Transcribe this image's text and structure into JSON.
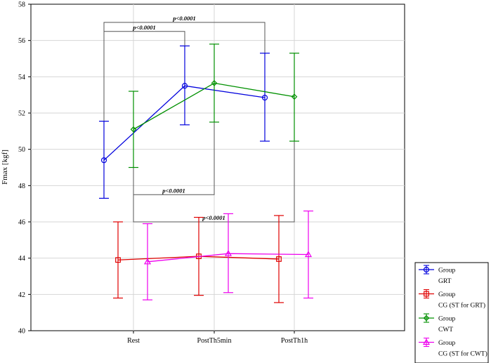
{
  "chart_data": {
    "type": "line",
    "categories": [
      "Rest",
      "PostTh5min",
      "PostTh1h"
    ],
    "ylabel": "Fmax [kgf]",
    "xlabel": "",
    "ylim": [
      40,
      58
    ],
    "yticks": [
      40,
      42,
      44,
      46,
      48,
      50,
      52,
      54,
      56,
      58
    ],
    "grid": true,
    "legend_placement": "right",
    "series": [
      {
        "name": "GRT",
        "legend_header": "Group",
        "color": "#0000dd",
        "marker": "circle",
        "values": [
          49.4,
          53.5,
          52.85
        ],
        "lower": [
          47.3,
          51.35,
          50.45
        ],
        "upper": [
          51.55,
          55.7,
          55.3
        ]
      },
      {
        "name": "CG (ST for GRT)",
        "legend_header": "Group",
        "color": "#e00000",
        "marker": "square",
        "values": [
          43.9,
          44.1,
          43.95
        ],
        "lower": [
          41.8,
          41.95,
          41.55
        ],
        "upper": [
          46.0,
          46.25,
          46.35
        ]
      },
      {
        "name": "CWT",
        "legend_header": "Group",
        "color": "#009000",
        "marker": "diamond",
        "values": [
          51.1,
          53.65,
          52.9
        ],
        "lower": [
          49.0,
          51.5,
          50.45
        ],
        "upper": [
          53.2,
          55.8,
          55.3
        ]
      },
      {
        "name": "CG (ST for CWT)",
        "legend_header": "Group",
        "color": "#ee00ee",
        "marker": "triangle",
        "values": [
          43.8,
          44.25,
          44.2
        ],
        "lower": [
          41.7,
          42.1,
          41.8
        ],
        "upper": [
          45.9,
          46.45,
          46.6
        ]
      }
    ],
    "annotations": [
      {
        "label": "p<0.0001",
        "from": "Rest",
        "to": "PostTh1h",
        "series": "GRT",
        "y": 57.0
      },
      {
        "label": "p<0.0001",
        "from": "Rest",
        "to": "PostTh5min",
        "series": "GRT",
        "y": 56.5
      },
      {
        "label": "p<0.0001",
        "from": "Rest",
        "to": "PostTh5min",
        "series": "CWT",
        "y": 47.5
      },
      {
        "label": "p<0.0001",
        "from": "Rest",
        "to": "PostTh1h",
        "series": "CWT",
        "y": 46.0
      }
    ]
  }
}
